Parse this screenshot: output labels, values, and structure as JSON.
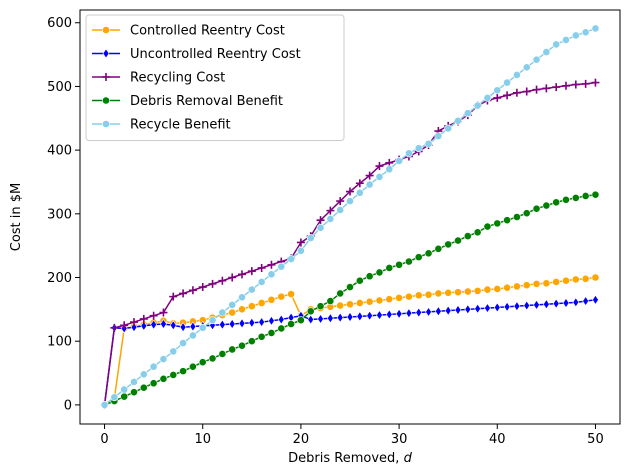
{
  "chart_data": {
    "type": "line",
    "title": "",
    "xlabel": "Debris Removed, ",
    "xlabel_var": "d",
    "ylabel": "Cost in $M",
    "xlim": [
      -2.5,
      52.5
    ],
    "ylim": [
      -30,
      620
    ],
    "xticks": [
      0,
      10,
      20,
      30,
      40,
      50
    ],
    "yticks": [
      0,
      100,
      200,
      300,
      400,
      500,
      600
    ],
    "grid": false,
    "legend_position": "top-left",
    "x": [
      0,
      1,
      2,
      3,
      4,
      5,
      6,
      7,
      8,
      9,
      10,
      11,
      12,
      13,
      14,
      15,
      16,
      17,
      18,
      19,
      20,
      21,
      22,
      23,
      24,
      25,
      26,
      27,
      28,
      29,
      30,
      31,
      32,
      33,
      34,
      35,
      36,
      37,
      38,
      39,
      40,
      41,
      42,
      43,
      44,
      45,
      46,
      47,
      48,
      49,
      50
    ],
    "series": [
      {
        "name": "Controlled Reentry Cost",
        "color": "#ffa500",
        "marker": "circle",
        "values": [
          0,
          10,
          120,
          123,
          126,
          129,
          132,
          128,
          129,
          131,
          133,
          137,
          141,
          145,
          150,
          155,
          160,
          165,
          170,
          174,
          140,
          150,
          152,
          154,
          156,
          158,
          160,
          162,
          164,
          166,
          168,
          170,
          172,
          173,
          175,
          176,
          177,
          178,
          179,
          181,
          182,
          184,
          186,
          188,
          190,
          191,
          193,
          195,
          197,
          198,
          200
        ]
      },
      {
        "name": "Uncontrolled Reentry Cost",
        "color": "#0000ff",
        "marker": "diamond",
        "values": [
          0,
          121,
          120,
          122,
          124,
          126,
          127,
          125,
          122,
          123,
          124,
          125,
          126,
          127,
          128,
          129,
          130,
          132,
          134,
          137,
          140,
          134,
          135,
          136,
          137,
          138,
          139,
          140,
          141,
          142,
          143,
          144,
          145,
          146,
          147,
          148,
          149,
          150,
          151,
          152,
          153,
          154,
          155,
          156,
          157,
          158,
          159,
          160,
          161,
          163,
          165
        ]
      },
      {
        "name": "Recycling Cost",
        "color": "#800080",
        "marker": "plus",
        "values": [
          0,
          121,
          125,
          130,
          135,
          140,
          145,
          170,
          175,
          180,
          185,
          190,
          195,
          200,
          205,
          210,
          215,
          220,
          225,
          230,
          255,
          265,
          290,
          305,
          320,
          335,
          348,
          360,
          375,
          380,
          385,
          390,
          398,
          408,
          430,
          438,
          445,
          455,
          470,
          478,
          482,
          486,
          490,
          492,
          495,
          497,
          499,
          501,
          503,
          504,
          506
        ]
      },
      {
        "name": "Debris Removal Benefit",
        "color": "#008000",
        "marker": "circle",
        "values": [
          0,
          6,
          13,
          20,
          27,
          34,
          41,
          47,
          53,
          60,
          67,
          73,
          80,
          87,
          93,
          100,
          107,
          113,
          120,
          127,
          133,
          147,
          155,
          163,
          175,
          185,
          195,
          202,
          208,
          215,
          220,
          225,
          232,
          238,
          245,
          252,
          258,
          265,
          271,
          280,
          285,
          290,
          295,
          301,
          308,
          313,
          318,
          322,
          325,
          328,
          330
        ]
      },
      {
        "name": "Recycle Benefit",
        "color": "#87ceeb",
        "marker": "circle",
        "values": [
          0,
          12,
          24,
          36,
          48,
          60,
          72,
          84,
          97,
          109,
          121,
          133,
          145,
          157,
          169,
          181,
          193,
          205,
          217,
          229,
          242,
          262,
          278,
          292,
          306,
          320,
          333,
          346,
          358,
          370,
          383,
          395,
          403,
          410,
          422,
          434,
          446,
          458,
          470,
          482,
          494,
          506,
          518,
          530,
          542,
          554,
          566,
          573,
          580,
          585,
          591
        ]
      }
    ]
  }
}
